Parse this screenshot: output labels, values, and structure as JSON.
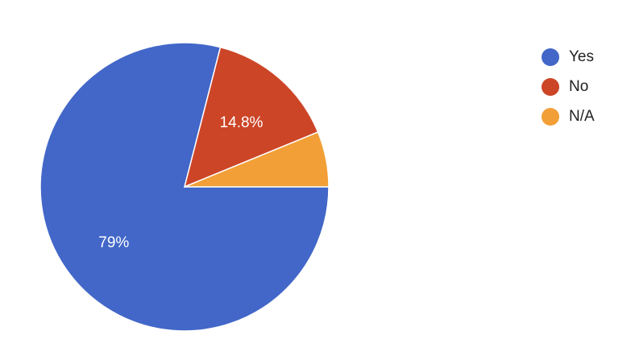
{
  "chart_data": {
    "type": "pie",
    "categories": [
      "Yes",
      "No",
      "N/A"
    ],
    "values": [
      79,
      14.8,
      6.2
    ],
    "data_labels": [
      "79%",
      "14.8%",
      ""
    ],
    "colors": [
      "#4267c8",
      "#cc4527",
      "#f29f37"
    ],
    "legend_position": "right",
    "start_angle": "3 o'clock, clockwise"
  }
}
